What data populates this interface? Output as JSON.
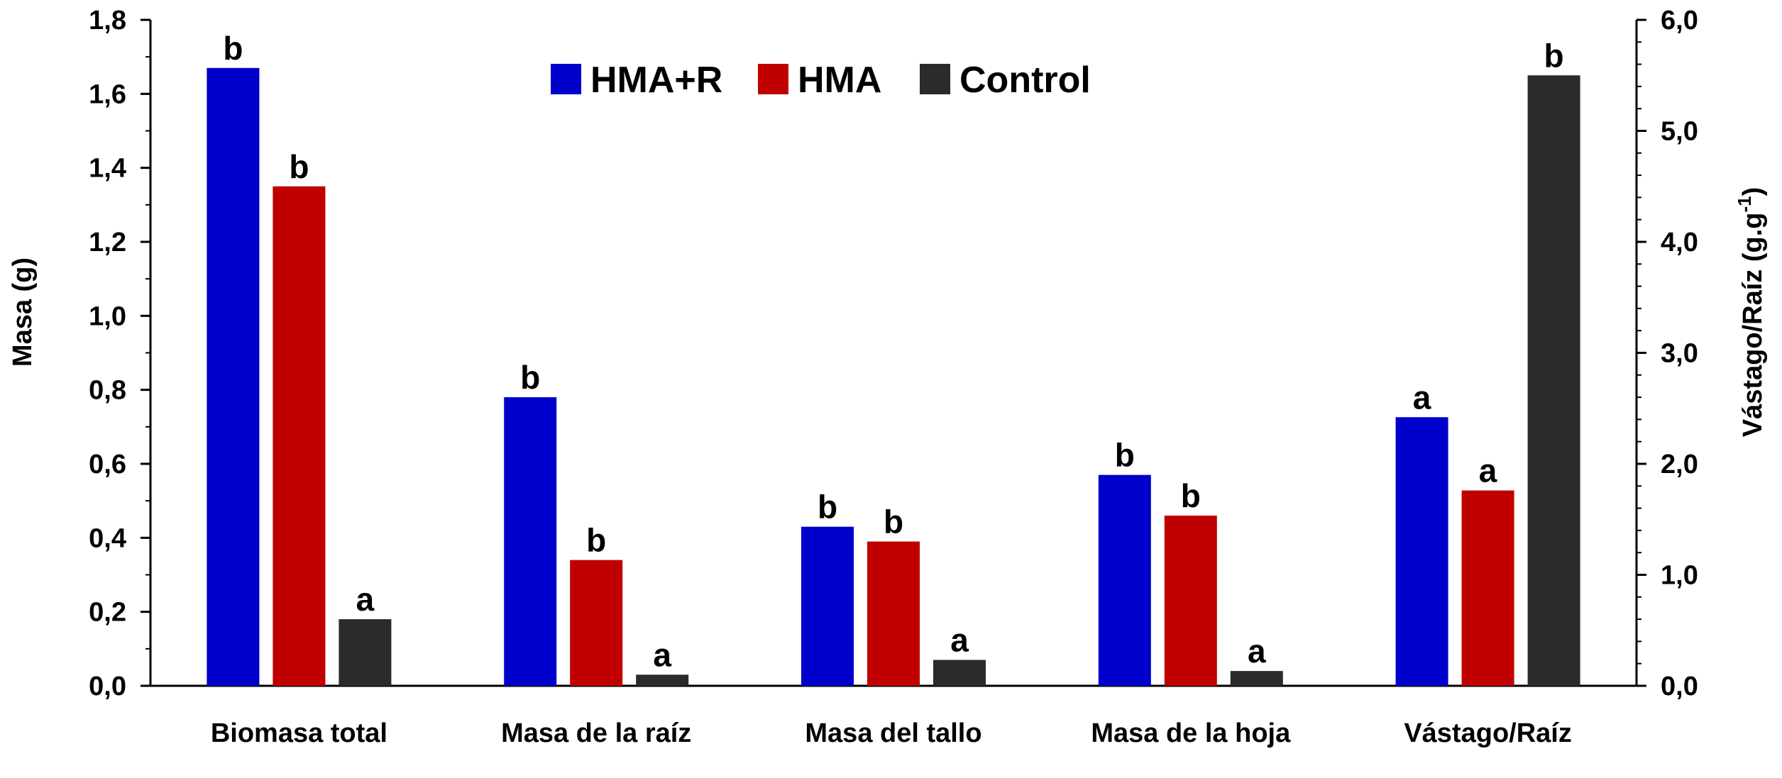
{
  "chart_data": {
    "type": "bar",
    "categories": [
      "Biomasa total",
      "Masa de la raíz",
      "Masa del tallo",
      "Masa de la hoja",
      "Vástago/Raíz"
    ],
    "series": [
      {
        "name": "HMA+R",
        "color": "#0000cc",
        "values": [
          1.67,
          0.78,
          0.43,
          0.57,
          2.42
        ],
        "labels": [
          "b",
          "b",
          "b",
          "b",
          "a"
        ]
      },
      {
        "name": "HMA",
        "color": "#c00000",
        "values": [
          1.35,
          0.34,
          0.39,
          0.46,
          1.76
        ],
        "labels": [
          "b",
          "b",
          "b",
          "b",
          "a"
        ]
      },
      {
        "name": "Control",
        "color": "#2b2b2b",
        "values": [
          0.18,
          0.03,
          0.07,
          0.04,
          5.5
        ],
        "labels": [
          "a",
          "a",
          "a",
          "a",
          "b"
        ]
      }
    ],
    "secondary_axis_categories": [
      "Vástago/Raíz"
    ],
    "y_left": {
      "label": "Masa (g)",
      "ylim": [
        0,
        1.8
      ],
      "ticks": [
        "0,0",
        "0,2",
        "0,4",
        "0,6",
        "0,8",
        "1,0",
        "1,2",
        "1,4",
        "1,6",
        "1,8"
      ]
    },
    "y_right": {
      "label_main": "Vástago/Raíz  (g.g",
      "label_sup": "-1",
      "label_end": ")",
      "ylim": [
        0,
        6
      ],
      "ticks": [
        "0,0",
        "1,0",
        "2,0",
        "3,0",
        "4,0",
        "5,0",
        "6,0"
      ]
    },
    "legend_position": "top-center",
    "grid": false
  }
}
